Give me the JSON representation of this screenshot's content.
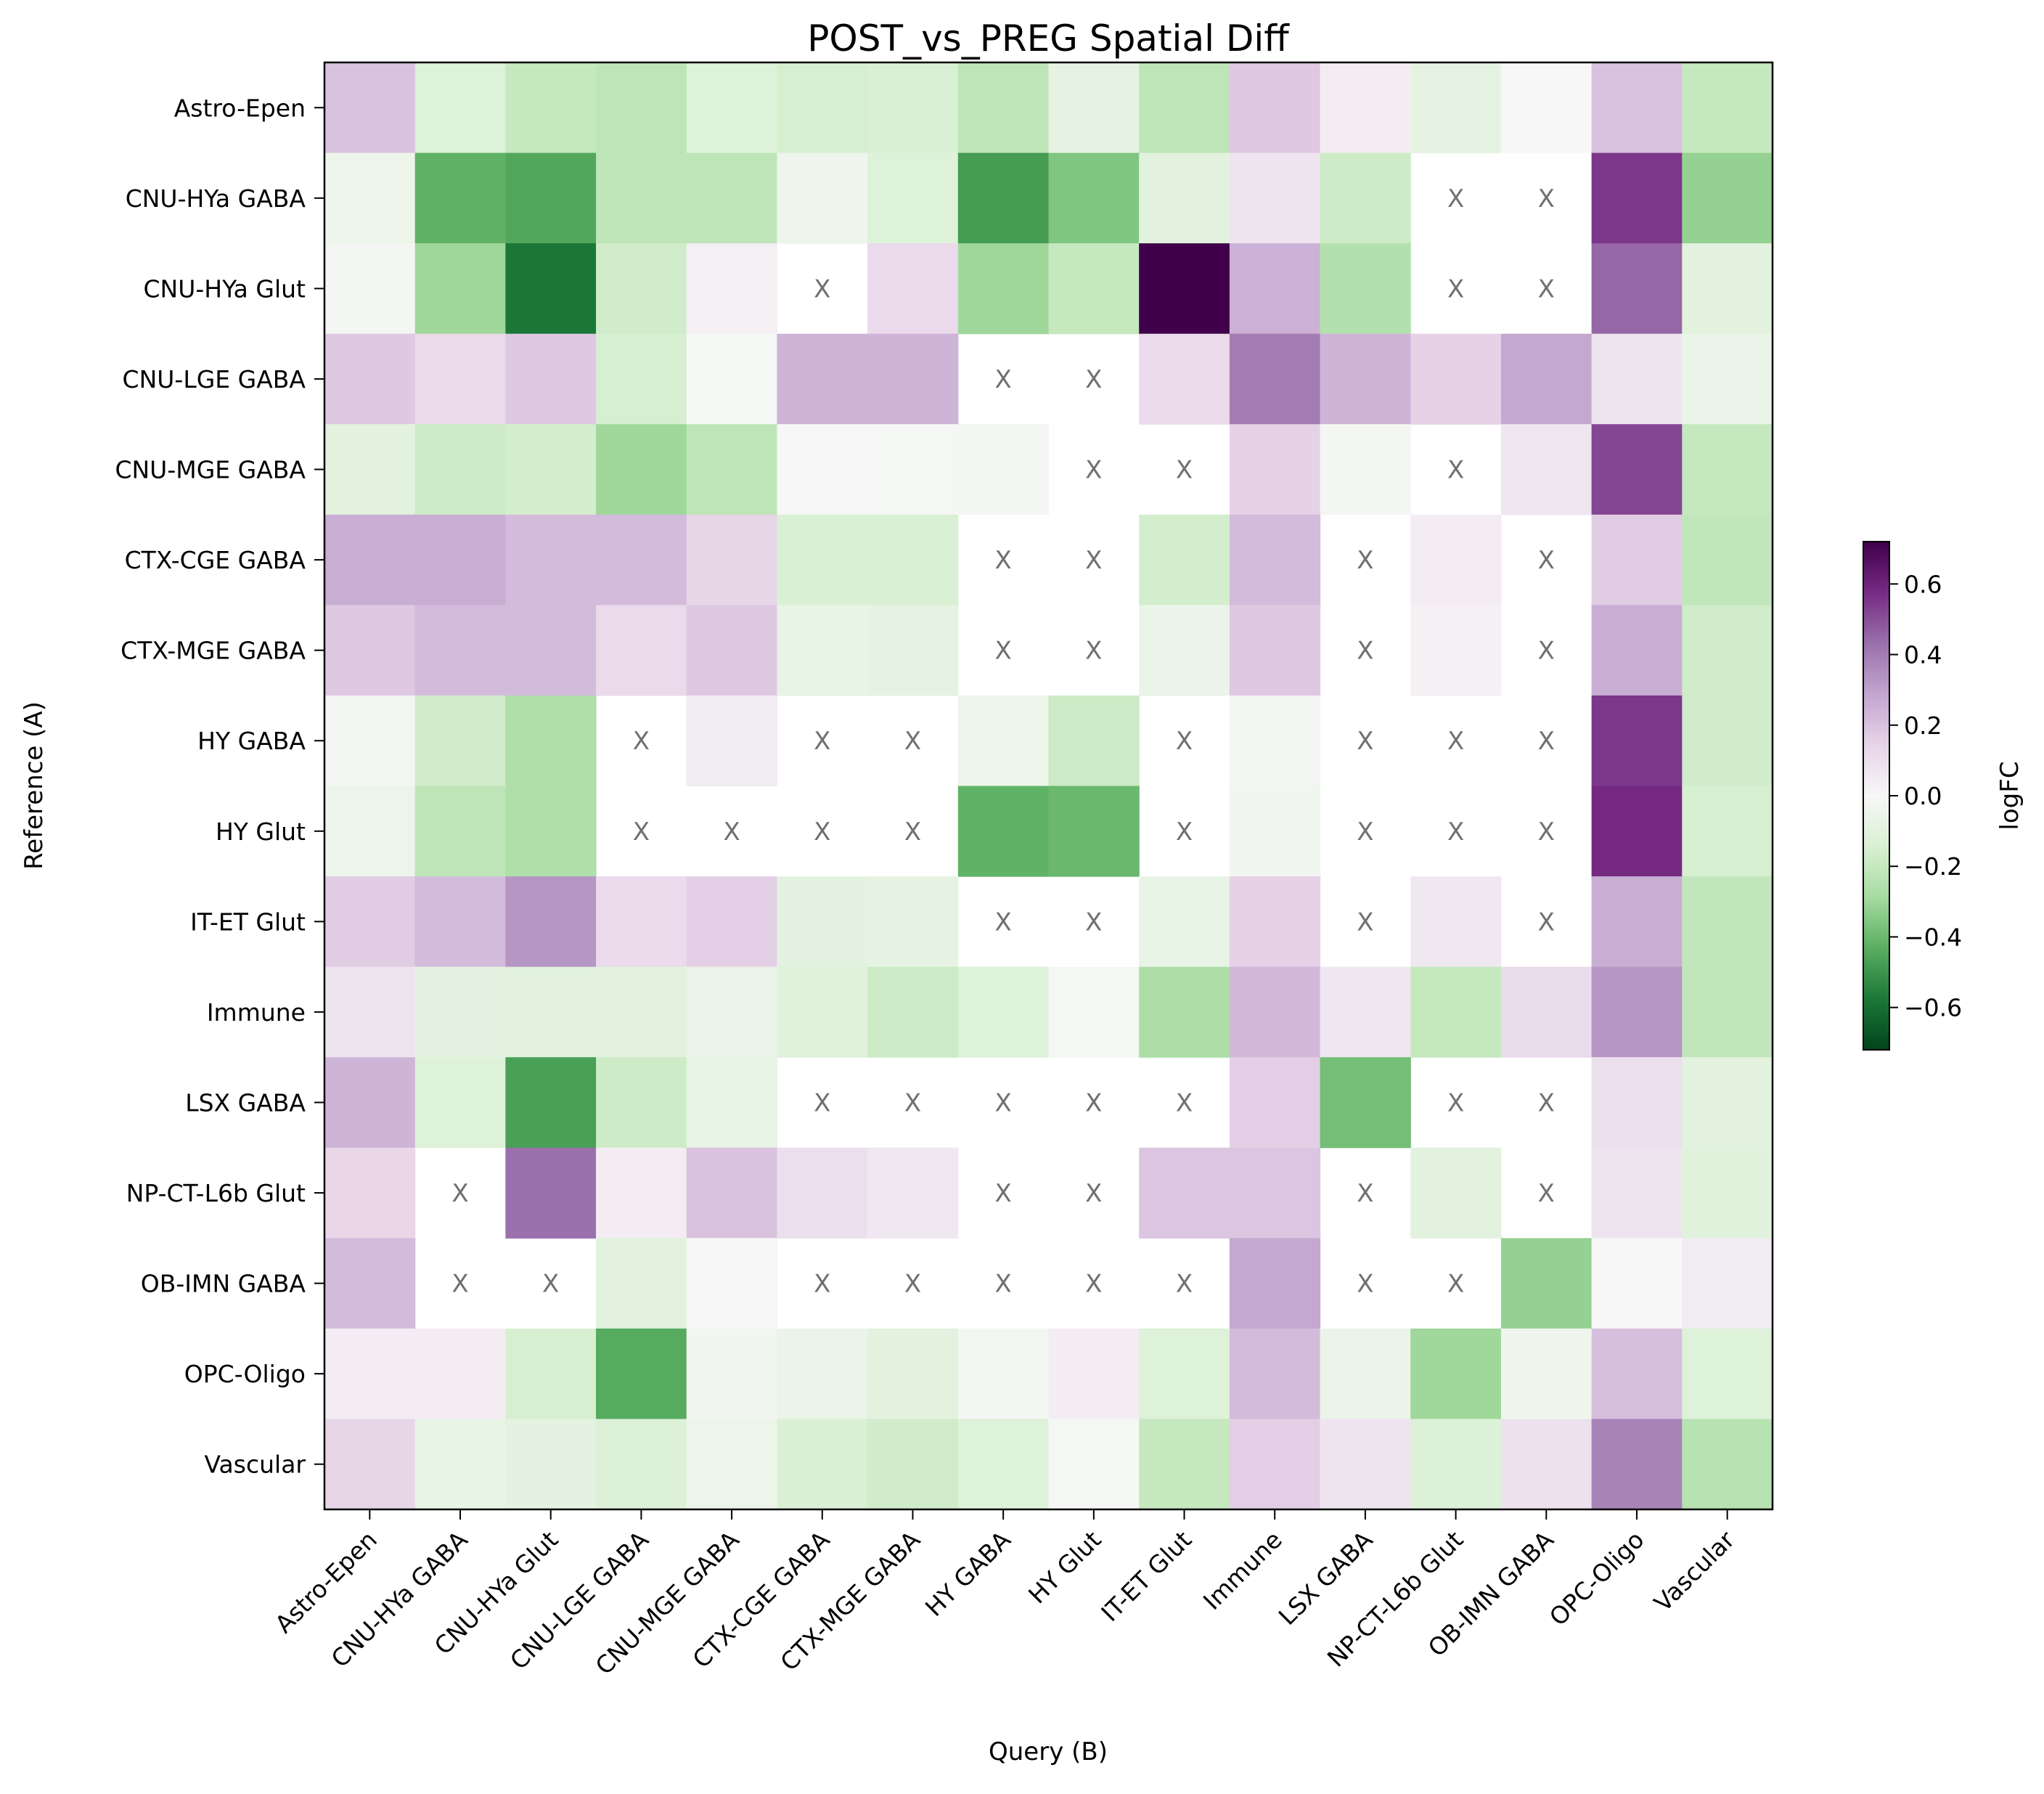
{
  "chart_data": {
    "type": "heatmap",
    "title": "POST_vs_PREG Spatial Diff",
    "xlabel": "Query (B)",
    "ylabel": "Reference (A)",
    "colorbar_label": "logFC",
    "colormap": "PRGn",
    "vmin": -0.72,
    "vmax": 0.72,
    "colorbar_ticks": [
      -0.6,
      -0.4,
      -0.2,
      0.0,
      0.2,
      0.4,
      0.6
    ],
    "colorbar_tick_labels": [
      "−0.6",
      "−0.4",
      "−0.2",
      "0.0",
      "0.2",
      "0.4",
      "0.6"
    ],
    "missing_marker": "X",
    "x_categories": [
      "Astro-Epen",
      "CNU-HYa GABA",
      "CNU-HYa Glut",
      "CNU-LGE GABA",
      "CNU-MGE GABA",
      "CTX-CGE GABA",
      "CTX-MGE GABA",
      "HY GABA",
      "HY Glut",
      "IT-ET Glut",
      "Immune",
      "LSX GABA",
      "NP-CT-L6b Glut",
      "OB-IMN GABA",
      "OPC-Oligo",
      "Vascular"
    ],
    "y_categories": [
      "Astro-Epen",
      "CNU-HYa GABA",
      "CNU-HYa Glut",
      "CNU-LGE GABA",
      "CNU-MGE GABA",
      "CTX-CGE GABA",
      "CTX-MGE GABA",
      "HY GABA",
      "HY Glut",
      "IT-ET Glut",
      "Immune",
      "LSX GABA",
      "NP-CT-L6b Glut",
      "OB-IMN GABA",
      "OPC-Oligo",
      "Vascular"
    ],
    "values": [
      [
        0.2,
        -0.12,
        -0.2,
        -0.22,
        -0.12,
        -0.15,
        -0.14,
        -0.22,
        -0.08,
        -0.22,
        0.18,
        0.04,
        -0.08,
        0.0,
        0.2,
        -0.2
      ],
      [
        -0.05,
        -0.42,
        -0.45,
        -0.22,
        -0.22,
        -0.04,
        -0.12,
        -0.48,
        -0.36,
        -0.1,
        0.08,
        -0.18,
        null,
        null,
        0.55,
        -0.32
      ],
      [
        -0.02,
        -0.3,
        -0.58,
        -0.17,
        0.03,
        null,
        0.12,
        -0.3,
        -0.2,
        0.72,
        0.25,
        -0.25,
        null,
        null,
        0.45,
        -0.1
      ],
      [
        0.18,
        0.12,
        0.18,
        -0.15,
        -0.01,
        0.24,
        0.24,
        null,
        null,
        0.12,
        0.4,
        0.24,
        0.15,
        0.28,
        0.08,
        -0.06
      ],
      [
        -0.1,
        -0.18,
        -0.16,
        -0.3,
        -0.22,
        0.0,
        -0.01,
        -0.02,
        null,
        null,
        0.15,
        -0.02,
        null,
        0.07,
        0.52,
        -0.2
      ],
      [
        0.26,
        0.26,
        0.22,
        0.22,
        0.14,
        -0.14,
        -0.14,
        null,
        null,
        -0.16,
        0.22,
        null,
        0.04,
        null,
        0.17,
        -0.21
      ],
      [
        0.18,
        0.22,
        0.22,
        0.12,
        0.18,
        -0.07,
        -0.08,
        null,
        null,
        -0.06,
        0.18,
        null,
        0.03,
        null,
        0.26,
        -0.17
      ],
      [
        -0.02,
        -0.17,
        -0.26,
        null,
        0.05,
        null,
        null,
        -0.05,
        -0.18,
        null,
        -0.02,
        null,
        null,
        null,
        0.55,
        -0.17
      ],
      [
        -0.05,
        -0.22,
        -0.26,
        null,
        null,
        null,
        null,
        -0.42,
        -0.4,
        null,
        -0.03,
        null,
        null,
        null,
        0.58,
        -0.15
      ],
      [
        0.17,
        0.22,
        0.33,
        0.12,
        0.16,
        -0.09,
        -0.08,
        null,
        null,
        -0.07,
        0.15,
        null,
        0.06,
        null,
        0.26,
        -0.21
      ],
      [
        0.08,
        -0.09,
        -0.1,
        -0.1,
        -0.06,
        -0.11,
        -0.18,
        -0.12,
        -0.01,
        -0.27,
        0.23,
        0.07,
        -0.2,
        0.11,
        0.33,
        -0.21
      ],
      [
        0.24,
        -0.12,
        -0.47,
        -0.18,
        -0.07,
        null,
        null,
        null,
        null,
        null,
        0.16,
        -0.38,
        null,
        null,
        0.1,
        -0.1
      ],
      [
        0.13,
        null,
        0.43,
        0.04,
        0.2,
        0.1,
        0.06,
        null,
        null,
        0.19,
        0.19,
        null,
        -0.1,
        null,
        0.08,
        -0.11
      ],
      [
        0.22,
        null,
        null,
        -0.1,
        0.0,
        null,
        null,
        null,
        null,
        null,
        0.28,
        null,
        null,
        -0.32,
        0.0,
        0.05
      ],
      [
        0.04,
        0.04,
        -0.15,
        -0.44,
        -0.03,
        -0.06,
        -0.1,
        -0.02,
        0.04,
        -0.12,
        0.22,
        -0.06,
        -0.3,
        -0.04,
        0.21,
        -0.12
      ],
      [
        0.14,
        -0.07,
        -0.09,
        -0.13,
        -0.05,
        -0.14,
        -0.17,
        -0.12,
        -0.01,
        -0.2,
        0.16,
        0.08,
        -0.13,
        0.09,
        0.38,
        -0.24
      ]
    ]
  }
}
